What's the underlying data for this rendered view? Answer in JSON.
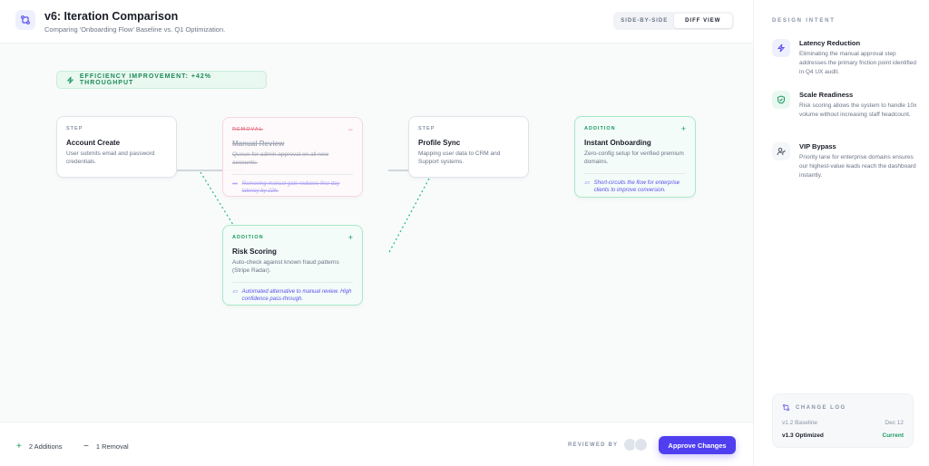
{
  "header": {
    "title": "v6: Iteration Comparison",
    "subtitle": "Comparing 'Onboarding Flow' Baseline vs. Q1 Optimization.",
    "view_toggle": [
      "SIDE-BY-SIDE",
      "DIFF VIEW"
    ],
    "active_view": "DIFF VIEW"
  },
  "banner": {
    "text": "EFFICIENCY IMPROVEMENT: +42% THROUGHPUT",
    "icon": "lightning-icon"
  },
  "cards": [
    {
      "tag": "STEP",
      "name": "Account Create",
      "desc": "User submits email and password credentials.",
      "type": "step"
    },
    {
      "tag": "REMOVAL",
      "name": "Manual Review",
      "desc": "Queue for admin approval on all new accounts.",
      "note": "Removing manual gate reduces first-day latency by 22h.",
      "mark": "−",
      "type": "removal"
    },
    {
      "tag": "STEP",
      "name": "Profile Sync",
      "desc": "Mapping user data to CRM and Support systems.",
      "type": "step"
    },
    {
      "tag": "ADDITION",
      "name": "Instant Onboarding",
      "desc": "Zero-config setup for verified premium domains.",
      "note": "Short-circuits the flow for enterprise clients to improve conversion.",
      "mark": "+",
      "type": "addition"
    },
    {
      "tag": "ADDITION",
      "name": "Risk Scoring",
      "desc": "Auto-check against known fraud patterns (Stripe Radar).",
      "note": "Automated alternative to manual review. High confidence pass-through.",
      "mark": "+",
      "type": "addition"
    }
  ],
  "footer": {
    "additions": "2 Additions",
    "removals": "1 Removal",
    "reviewed_by": "REVIEWED BY",
    "approve": "Approve Changes"
  },
  "sidebar": {
    "heading": "DESIGN INTENT",
    "items": [
      {
        "title": "Latency Reduction",
        "desc": "Eliminating the manual approval step addresses the primary friction point identified in Q4 UX audit.",
        "icon": "lightning-icon"
      },
      {
        "title": "Scale Readiness",
        "desc": "Risk scoring allows the system to handle 10x volume without increasing staff headcount.",
        "icon": "shield-check-icon"
      },
      {
        "title": "VIP Bypass",
        "desc": "Priority lane for enterprise domains ensures our highest-value leads reach the dashboard instantly.",
        "icon": "user-check-icon"
      }
    ],
    "changelog": {
      "heading": "CHANGE LOG",
      "entries": [
        {
          "version": "v1.2 Baseline",
          "date": "Dec 12"
        },
        {
          "version": "v1.3 Optimized",
          "date": "Current"
        }
      ]
    }
  },
  "colors": {
    "accent": "#4f3ff0",
    "addition": "#1d9a62",
    "removal": "#e7758a"
  }
}
